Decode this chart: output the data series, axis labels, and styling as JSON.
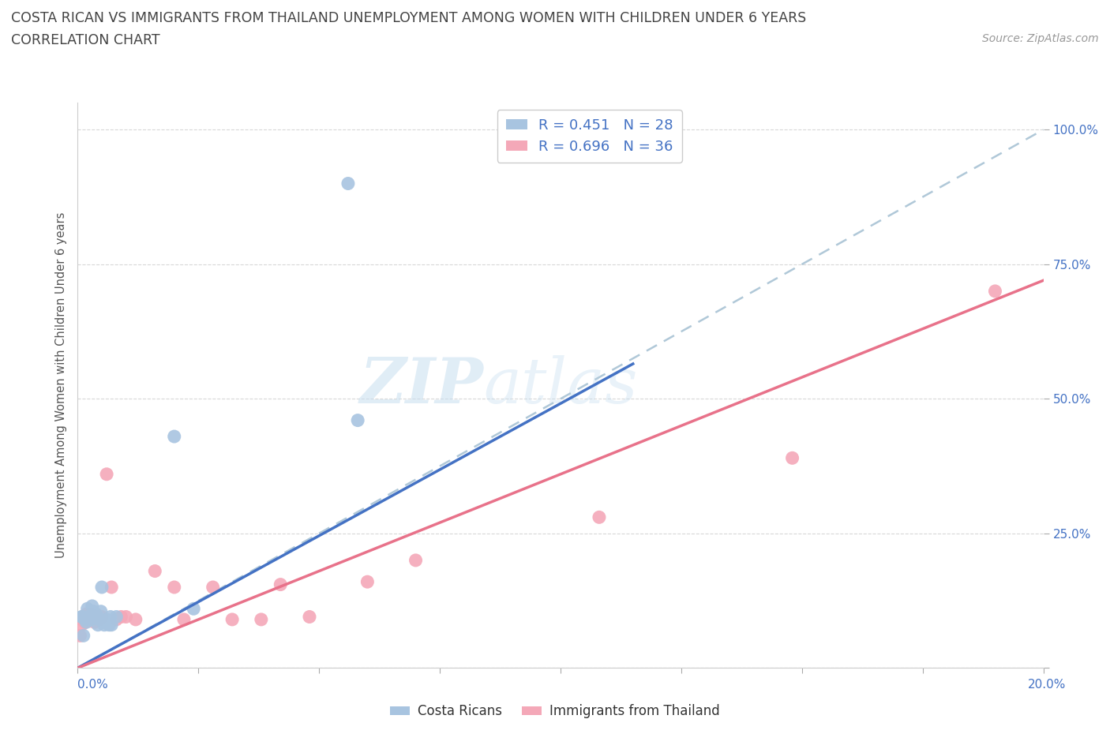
{
  "title_line1": "COSTA RICAN VS IMMIGRANTS FROM THAILAND UNEMPLOYMENT AMONG WOMEN WITH CHILDREN UNDER 6 YEARS",
  "title_line2": "CORRELATION CHART",
  "source_text": "Source: ZipAtlas.com",
  "ylabel": "Unemployment Among Women with Children Under 6 years",
  "watermark_zip": "ZIP",
  "watermark_atlas": "atlas",
  "legend_blue_label": "R = 0.451   N = 28",
  "legend_pink_label": "R = 0.696   N = 36",
  "legend_bottom_blue": "Costa Ricans",
  "legend_bottom_pink": "Immigrants from Thailand",
  "blue_color": "#a8c4e0",
  "pink_color": "#f4a8b8",
  "blue_line_color": "#4472c4",
  "pink_line_color": "#e8728a",
  "dash_line_color": "#b0c8d8",
  "blue_scatter": [
    [
      0.0008,
      0.095
    ],
    [
      0.001,
      0.095
    ],
    [
      0.0012,
      0.06
    ],
    [
      0.0015,
      0.09
    ],
    [
      0.0018,
      0.085
    ],
    [
      0.002,
      0.11
    ],
    [
      0.0022,
      0.09
    ],
    [
      0.0025,
      0.095
    ],
    [
      0.0028,
      0.09
    ],
    [
      0.003,
      0.115
    ],
    [
      0.0032,
      0.105
    ],
    [
      0.0035,
      0.095
    ],
    [
      0.0038,
      0.1
    ],
    [
      0.004,
      0.095
    ],
    [
      0.0042,
      0.08
    ],
    [
      0.0045,
      0.09
    ],
    [
      0.0048,
      0.105
    ],
    [
      0.005,
      0.15
    ],
    [
      0.0055,
      0.08
    ],
    [
      0.006,
      0.09
    ],
    [
      0.0065,
      0.08
    ],
    [
      0.0068,
      0.095
    ],
    [
      0.007,
      0.08
    ],
    [
      0.008,
      0.095
    ],
    [
      0.02,
      0.43
    ],
    [
      0.058,
      0.46
    ],
    [
      0.024,
      0.11
    ],
    [
      0.056,
      0.9
    ]
  ],
  "pink_scatter": [
    [
      0.0005,
      0.06
    ],
    [
      0.0008,
      0.08
    ],
    [
      0.001,
      0.09
    ],
    [
      0.0012,
      0.095
    ],
    [
      0.0015,
      0.085
    ],
    [
      0.0018,
      0.1
    ],
    [
      0.002,
      0.095
    ],
    [
      0.0022,
      0.095
    ],
    [
      0.0025,
      0.09
    ],
    [
      0.0028,
      0.1
    ],
    [
      0.003,
      0.095
    ],
    [
      0.0032,
      0.09
    ],
    [
      0.0035,
      0.085
    ],
    [
      0.0038,
      0.095
    ],
    [
      0.004,
      0.095
    ],
    [
      0.0045,
      0.09
    ],
    [
      0.005,
      0.095
    ],
    [
      0.006,
      0.36
    ],
    [
      0.007,
      0.15
    ],
    [
      0.008,
      0.09
    ],
    [
      0.009,
      0.095
    ],
    [
      0.01,
      0.095
    ],
    [
      0.012,
      0.09
    ],
    [
      0.016,
      0.18
    ],
    [
      0.02,
      0.15
    ],
    [
      0.022,
      0.09
    ],
    [
      0.028,
      0.15
    ],
    [
      0.032,
      0.09
    ],
    [
      0.038,
      0.09
    ],
    [
      0.042,
      0.155
    ],
    [
      0.048,
      0.095
    ],
    [
      0.06,
      0.16
    ],
    [
      0.07,
      0.2
    ],
    [
      0.108,
      0.28
    ],
    [
      0.148,
      0.39
    ],
    [
      0.19,
      0.7
    ]
  ],
  "blue_line_x": [
    0.0,
    0.115
  ],
  "blue_line_y": [
    0.0,
    0.565
  ],
  "pink_line_x": [
    0.0,
    0.2
  ],
  "pink_line_y": [
    0.0,
    0.72
  ],
  "dash_line_x": [
    0.0,
    0.2
  ],
  "dash_line_y": [
    0.0,
    1.0
  ],
  "xlim": [
    0.0,
    0.2
  ],
  "ylim": [
    0.0,
    1.05
  ],
  "xticks": [
    0.0,
    0.025,
    0.05,
    0.075,
    0.1,
    0.125,
    0.15,
    0.175,
    0.2
  ],
  "yticks": [
    0.0,
    0.25,
    0.5,
    0.75,
    1.0
  ],
  "ytick_labels": [
    "",
    "25.0%",
    "50.0%",
    "75.0%",
    "100.0%"
  ],
  "background_color": "#ffffff",
  "grid_color": "#d8d8d8"
}
